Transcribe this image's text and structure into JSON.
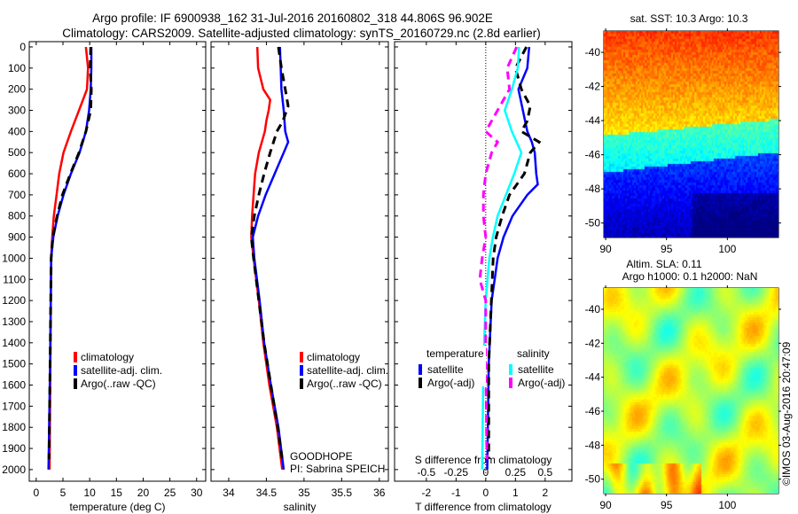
{
  "title": {
    "line1": "Argo profile: IF 6900938_162 31-Jul-2016 20160802_318 44.806S 96.902E",
    "line2": "Climatology: CARS2009. Satellite-adjusted climatology: synTS_20160729.nc (2.8d earlier)"
  },
  "annotations": {
    "project": "GOODHOPE",
    "pi": "PI: Sabrina SPEICH",
    "credit": "©IMOS 03-Aug-2016 20:47:09"
  },
  "chart_data": [
    {
      "type": "line",
      "id": "temperature",
      "xlabel": "temperature (deg C)",
      "ylabel": "",
      "xlim": [
        -1.3,
        31.7
      ],
      "ylim": [
        -25,
        2055
      ],
      "y_inverted": true,
      "xticks": [
        "0",
        "5",
        "10",
        "15",
        "20",
        "25",
        "30"
      ],
      "yticks": [
        "0",
        "100",
        "200",
        "300",
        "400",
        "500",
        "600",
        "700",
        "800",
        "900",
        "1000",
        "1100",
        "1200",
        "1300",
        "1400",
        "1500",
        "1600",
        "1700",
        "1800",
        "1900",
        "2000"
      ],
      "legend": [
        "climatology",
        "satellite-adj. clim.",
        "Argo(..raw -QC)"
      ],
      "series": [
        {
          "name": "climatology",
          "color": "#ff0000",
          "style": "solid",
          "depth": [
            0,
            100,
            200,
            300,
            400,
            500,
            600,
            700,
            800,
            900,
            1000,
            1500,
            2000
          ],
          "values": [
            9.3,
            9.7,
            9.5,
            8.0,
            6.5,
            5.1,
            4.3,
            3.8,
            3.3,
            3.0,
            2.8,
            2.65,
            2.5
          ]
        },
        {
          "name": "satellite-adj. clim.",
          "color": "#0000ff",
          "style": "solid",
          "depth": [
            0,
            100,
            200,
            300,
            400,
            500,
            600,
            700,
            800,
            900,
            1000,
            1500,
            2000
          ],
          "values": [
            10.3,
            10.3,
            10.2,
            9.9,
            9.3,
            8.1,
            6.5,
            5.1,
            4.0,
            3.2,
            2.8,
            2.6,
            2.3
          ]
        },
        {
          "name": "Argo(..raw -QC)",
          "color": "#000000",
          "style": "dashed",
          "depth": [
            0,
            100,
            200,
            300,
            400,
            500,
            600,
            700,
            800,
            900,
            1000,
            1500,
            1950
          ],
          "values": [
            10.2,
            10.1,
            10.3,
            10.2,
            9.3,
            8.0,
            6.4,
            4.9,
            3.9,
            3.1,
            2.8,
            2.6,
            2.4
          ]
        }
      ]
    },
    {
      "type": "line",
      "id": "salinity",
      "xlabel": "salinity",
      "xlim": [
        33.765,
        36.12
      ],
      "ylim": [
        -25,
        2055
      ],
      "y_inverted": true,
      "xticks": [
        "34",
        "34.5",
        "35",
        "35.5",
        "36"
      ],
      "legend": [
        "climatology",
        "satellite-adj. clim.",
        "Argo(..raw -QC)"
      ],
      "series": [
        {
          "name": "climatology",
          "color": "#ff0000",
          "style": "solid",
          "depth": [
            0,
            100,
            200,
            250,
            300,
            350,
            400,
            500,
            600,
            700,
            800,
            900,
            1000,
            1200,
            1400,
            1600,
            1800,
            2000
          ],
          "values": [
            34.38,
            34.39,
            34.46,
            34.55,
            34.53,
            34.5,
            34.48,
            34.4,
            34.35,
            34.33,
            34.31,
            34.3,
            34.33,
            34.4,
            34.46,
            34.54,
            34.64,
            34.71
          ]
        },
        {
          "name": "satellite-adj. clim.",
          "color": "#0000ff",
          "style": "solid",
          "depth": [
            0,
            100,
            200,
            300,
            400,
            450,
            500,
            600,
            700,
            800,
            900,
            1000,
            1200,
            1400,
            1600,
            1800,
            2000
          ],
          "values": [
            34.68,
            34.69,
            34.7,
            34.73,
            34.75,
            34.79,
            34.73,
            34.61,
            34.49,
            34.39,
            34.32,
            34.34,
            34.41,
            34.47,
            34.56,
            34.66,
            34.73
          ]
        },
        {
          "name": "Argo(..raw -QC)",
          "color": "#000000",
          "style": "dashed",
          "depth": [
            0,
            100,
            200,
            280,
            350,
            400,
            500,
            600,
            700,
            800,
            900,
            1000,
            1200,
            1400,
            1600,
            1800,
            1950
          ],
          "values": [
            34.66,
            34.7,
            34.75,
            34.79,
            34.72,
            34.64,
            34.55,
            34.47,
            34.4,
            34.34,
            34.3,
            34.33,
            34.4,
            34.47,
            34.56,
            34.65,
            34.71
          ]
        }
      ]
    },
    {
      "type": "line",
      "id": "difference",
      "xlabel": "T difference from climatology",
      "s_label": "S difference from climatology",
      "xlim": [
        -3.07,
        2.9
      ],
      "ylim": [
        -25,
        2055
      ],
      "y_inverted": true,
      "xticks": [
        "-2",
        "-1",
        "0",
        "1",
        "2"
      ],
      "s_ticks": [
        "-0.5",
        "-0.25",
        "0",
        "0.25",
        "0.5"
      ],
      "s_to_t_factor": 4,
      "legend_headers": [
        "temperature",
        "salinity"
      ],
      "legend": [
        "satellite",
        "Argo(-adj)",
        "satellite",
        "Argo(-adj)"
      ],
      "series": [
        {
          "name": "temperature satellite",
          "axis": "T",
          "color": "#0000ff",
          "style": "solid",
          "depth": [
            0,
            100,
            200,
            300,
            400,
            450,
            500,
            600,
            650,
            700,
            800,
            900,
            1000,
            1100,
            1200,
            1500,
            2000
          ],
          "values": [
            1.46,
            1.4,
            1.1,
            1.25,
            1.4,
            1.55,
            1.65,
            1.7,
            1.75,
            1.4,
            0.9,
            0.6,
            0.4,
            0.3,
            0.2,
            0.1,
            0.05
          ]
        },
        {
          "name": "temperature Argo(-adj)",
          "axis": "T",
          "color": "#000000",
          "style": "dashed",
          "depth": [
            0,
            100,
            200,
            280,
            350,
            400,
            450,
            500,
            600,
            700,
            800,
            900,
            1000,
            1500,
            1950
          ],
          "values": [
            1.37,
            1.0,
            1.2,
            1.5,
            1.4,
            1.2,
            1.8,
            1.5,
            1.3,
            0.8,
            0.55,
            0.35,
            0.25,
            0.1,
            0.1
          ]
        },
        {
          "name": "salinity satellite",
          "axis": "S",
          "color": "#00ffff",
          "style": "solid",
          "depth": [
            0,
            100,
            200,
            300,
            400,
            500,
            600,
            700,
            800,
            900,
            1000,
            1200,
            1500,
            2000
          ],
          "values": [
            0.28,
            0.27,
            0.22,
            0.16,
            0.22,
            0.3,
            0.24,
            0.17,
            0.1,
            0.06,
            0.03,
            0.0,
            -0.02,
            -0.03
          ]
        },
        {
          "name": "salinity Argo(-adj)",
          "axis": "S",
          "color": "#ff00ff",
          "style": "dashed",
          "depth": [
            0,
            100,
            200,
            300,
            400,
            450,
            500,
            600,
            700,
            800,
            900,
            1000,
            1100,
            1200,
            1500,
            1950
          ],
          "values": [
            0.26,
            0.18,
            0.2,
            0.1,
            0.0,
            0.1,
            0.05,
            0.0,
            -0.02,
            -0.02,
            0.0,
            -0.03,
            -0.05,
            0.0,
            0.0,
            0.01
          ]
        }
      ]
    },
    {
      "type": "heatmap",
      "id": "sst-map",
      "title": "sat. SST: 10.3 Argo: 10.3",
      "lonlim": [
        89.85,
        104.2
      ],
      "latlim": [
        -50.85,
        -38.75
      ],
      "xticks": [
        "90",
        "95",
        "100"
      ],
      "yticks": [
        "-40",
        "-42",
        "-44",
        "-46",
        "-48",
        "-50"
      ]
    },
    {
      "type": "heatmap",
      "id": "sla-map",
      "title_line1": "Altim. SLA: 0.11",
      "title_line2": "Argo h1000: 0.1 h2000: NaN",
      "lonlim": [
        89.85,
        104.2
      ],
      "latlim": [
        -50.85,
        -38.75
      ],
      "xticks": [
        "90",
        "95",
        "100"
      ],
      "yticks": [
        "-40",
        "-42",
        "-44",
        "-46",
        "-48",
        "-50"
      ]
    }
  ]
}
